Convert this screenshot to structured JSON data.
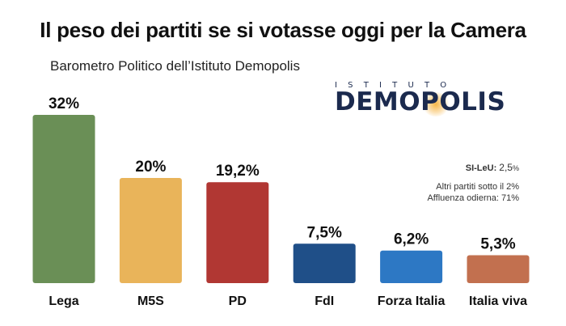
{
  "header": {
    "title": "Il peso dei partiti se si votasse oggi per la Camera",
    "subtitle": "Barometro Politico dell’Istituto Demopolis"
  },
  "logo": {
    "top_text": "ISTITUTO",
    "main_text": "DEMOPOLIS",
    "color": "#1b2a4e",
    "glow_color": "#f5aa28"
  },
  "notes": {
    "sileu_label": "SI-LeU:",
    "sileu_value": "2,5",
    "sileu_unit": "%",
    "line1": "Altri partiti sotto il 2%",
    "line2": "Affluenza odierna: 71%"
  },
  "chart_data": {
    "type": "bar",
    "categories": [
      "Lega",
      "M5S",
      "PD",
      "FdI",
      "Forza Italia",
      "Italia viva"
    ],
    "values": [
      32,
      20,
      19.2,
      7.5,
      6.2,
      5.3
    ],
    "labels": [
      "32%",
      "20%",
      "19,2%",
      "7,5%",
      "6,2%",
      "5,3%"
    ],
    "colors": [
      "#6a8f56",
      "#e9b45a",
      "#b13733",
      "#1f4f88",
      "#2d78c4",
      "#c2704f"
    ],
    "ylim": [
      0,
      32
    ],
    "grid": false
  }
}
